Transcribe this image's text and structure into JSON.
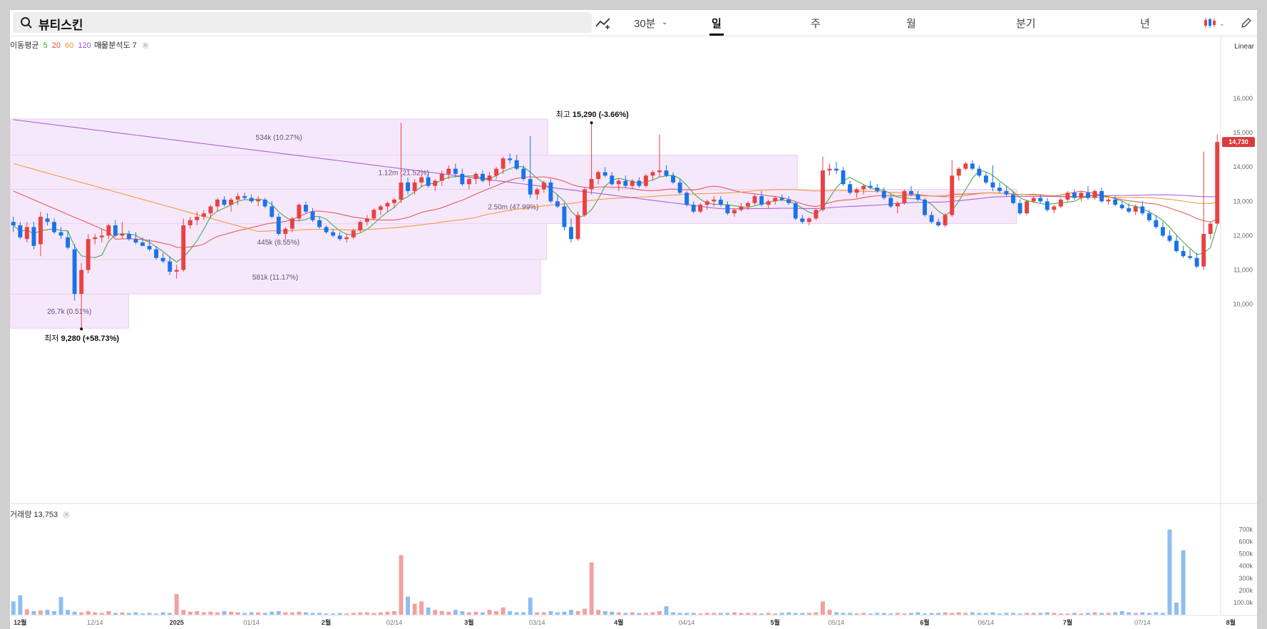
{
  "search": {
    "query": "뷰티스킨"
  },
  "toolbar": {
    "interval": "30분",
    "tabs": [
      "일",
      "주",
      "월",
      "분기",
      "년"
    ],
    "active_tab": "일"
  },
  "legend": {
    "ma_label": "이동평균",
    "ma_periods": [
      "5",
      "20",
      "60",
      "120"
    ],
    "ma_colors": [
      "#3aa33a",
      "#e44c4c",
      "#f0922f",
      "#9b59d0"
    ],
    "vp_label": "매물분석도 7"
  },
  "scale_mode": "Linear",
  "volume_legend": "거래량 13,753",
  "annotations": {
    "high_label": "최고",
    "high_value": "15,290 (-3.66%)",
    "low_label": "최저",
    "low_value": "9,280 (+58.73%)",
    "current_price": "14,730"
  },
  "chart_data": {
    "type": "candlestick",
    "price_axis": {
      "ticks": [
        "16,000",
        "15,000",
        "14,000",
        "13,000",
        "12,000",
        "11,000",
        "10,000"
      ],
      "ylim": [
        9000,
        16600
      ]
    },
    "volume_axis": {
      "ticks": [
        "700k",
        "600k",
        "500k",
        "400k",
        "300k",
        "200k",
        "100.0k"
      ],
      "ylim": [
        0,
        750000
      ]
    },
    "x_labels": [
      "12월",
      "12/14",
      "2025",
      "01/14",
      "2월",
      "02/14",
      "3월",
      "03/14",
      "4월",
      "04/14",
      "5월",
      "05/14",
      "6월",
      "06/14",
      "7월",
      "07/14",
      "8월"
    ],
    "x_label_index": [
      1,
      12,
      24,
      35,
      46,
      56,
      67,
      77,
      89,
      99,
      112,
      121,
      134,
      143,
      155,
      166,
      179
    ],
    "ohlc": [
      [
        12400,
        12550,
        12100,
        12300
      ],
      [
        12300,
        12400,
        11900,
        11950
      ],
      [
        11900,
        12400,
        11800,
        12250
      ],
      [
        12250,
        12400,
        11600,
        11700
      ],
      [
        11750,
        12700,
        11400,
        12550
      ],
      [
        12500,
        12650,
        12300,
        12400
      ],
      [
        12400,
        12500,
        12050,
        12100
      ],
      [
        12100,
        12250,
        11900,
        12000
      ],
      [
        11950,
        12150,
        11600,
        11650
      ],
      [
        11600,
        11750,
        10100,
        10300
      ],
      [
        10300,
        11200,
        9280,
        11000
      ],
      [
        11000,
        12050,
        10900,
        11900
      ],
      [
        11900,
        12050,
        11750,
        11950
      ],
      [
        11950,
        12200,
        11800,
        12000
      ],
      [
        12000,
        12350,
        11900,
        12300
      ],
      [
        12300,
        12450,
        11950,
        12000
      ],
      [
        12000,
        12400,
        11900,
        12050
      ],
      [
        12050,
        12150,
        11850,
        11900
      ],
      [
        11900,
        12100,
        11750,
        11800
      ],
      [
        11800,
        11950,
        11700,
        11700
      ],
      [
        11700,
        11900,
        11550,
        11600
      ],
      [
        11600,
        11700,
        11300,
        11350
      ],
      [
        11350,
        11500,
        11200,
        11250
      ],
      [
        11250,
        11400,
        10850,
        10950
      ],
      [
        10950,
        11150,
        10750,
        11000
      ],
      [
        11000,
        12500,
        10950,
        12300
      ],
      [
        12300,
        12550,
        12200,
        12450
      ],
      [
        12450,
        12700,
        12300,
        12550
      ],
      [
        12550,
        12750,
        12450,
        12650
      ],
      [
        12650,
        12900,
        12500,
        12850
      ],
      [
        12850,
        13100,
        12700,
        13050
      ],
      [
        13050,
        13150,
        12850,
        12900
      ],
      [
        12900,
        13100,
        12700,
        13050
      ],
      [
        13050,
        13250,
        12900,
        13150
      ],
      [
        13150,
        13250,
        13050,
        13100
      ],
      [
        13100,
        13200,
        12950,
        13000
      ],
      [
        13000,
        13150,
        12850,
        13050
      ],
      [
        13050,
        13100,
        12800,
        12850
      ],
      [
        12850,
        13000,
        12500,
        12550
      ],
      [
        12550,
        12650,
        12000,
        12050
      ],
      [
        12050,
        12250,
        11900,
        12200
      ],
      [
        12200,
        12550,
        12100,
        12500
      ],
      [
        12500,
        12950,
        12400,
        12900
      ],
      [
        12900,
        13000,
        12650,
        12700
      ],
      [
        12700,
        12800,
        12400,
        12450
      ],
      [
        12450,
        12550,
        12200,
        12250
      ],
      [
        12250,
        12300,
        12050,
        12100
      ],
      [
        12100,
        12200,
        11950,
        12000
      ],
      [
        12000,
        12100,
        11850,
        11900
      ],
      [
        11900,
        12050,
        11800,
        11950
      ],
      [
        11950,
        12200,
        11900,
        12150
      ],
      [
        12150,
        12450,
        12100,
        12400
      ],
      [
        12400,
        12600,
        12300,
        12500
      ],
      [
        12500,
        12800,
        12450,
        12750
      ],
      [
        12750,
        12900,
        12600,
        12850
      ],
      [
        12850,
        13000,
        12700,
        12950
      ],
      [
        12950,
        13100,
        12800,
        13050
      ],
      [
        13050,
        15290,
        12950,
        13550
      ],
      [
        13550,
        13700,
        13200,
        13300
      ],
      [
        13300,
        13650,
        13200,
        13550
      ],
      [
        13550,
        13800,
        13400,
        13700
      ],
      [
        13700,
        13850,
        13400,
        13450
      ],
      [
        13450,
        13650,
        13300,
        13600
      ],
      [
        13600,
        13900,
        13450,
        13800
      ],
      [
        13800,
        14050,
        13650,
        13950
      ],
      [
        13950,
        14100,
        13700,
        13800
      ],
      [
        13800,
        13950,
        13450,
        13500
      ],
      [
        13500,
        13700,
        13350,
        13650
      ],
      [
        13650,
        13850,
        13500,
        13800
      ],
      [
        13800,
        13900,
        13550,
        13600
      ],
      [
        13600,
        13850,
        13450,
        13750
      ],
      [
        13750,
        14000,
        13650,
        13950
      ],
      [
        13950,
        14300,
        13800,
        14250
      ],
      [
        14250,
        14400,
        14100,
        14200
      ],
      [
        14200,
        14350,
        13900,
        13950
      ],
      [
        13950,
        14050,
        13600,
        13650
      ],
      [
        13650,
        14900,
        13100,
        13200
      ],
      [
        13200,
        13400,
        13050,
        13350
      ],
      [
        13350,
        13600,
        13250,
        13550
      ],
      [
        13550,
        13650,
        12950,
        13000
      ],
      [
        13000,
        13200,
        12800,
        12850
      ],
      [
        12850,
        12950,
        12150,
        12250
      ],
      [
        12250,
        12500,
        11800,
        11900
      ],
      [
        11900,
        12700,
        11850,
        12600
      ],
      [
        12600,
        13400,
        12550,
        13350
      ],
      [
        13350,
        15290,
        13200,
        13650
      ],
      [
        13650,
        13900,
        13500,
        13850
      ],
      [
        13850,
        14000,
        13700,
        13750
      ],
      [
        13750,
        13850,
        13450,
        13500
      ],
      [
        13500,
        13650,
        13300,
        13600
      ],
      [
        13600,
        13750,
        13400,
        13450
      ],
      [
        13450,
        13650,
        13350,
        13600
      ],
      [
        13600,
        13700,
        13400,
        13450
      ],
      [
        13450,
        13800,
        13400,
        13750
      ],
      [
        13750,
        13900,
        13600,
        13850
      ],
      [
        13850,
        14950,
        13700,
        13900
      ],
      [
        13900,
        14050,
        13700,
        13750
      ],
      [
        13750,
        13850,
        13500,
        13550
      ],
      [
        13550,
        13650,
        13200,
        13250
      ],
      [
        13250,
        13300,
        12850,
        12900
      ],
      [
        12900,
        13000,
        12650,
        12700
      ],
      [
        12700,
        12950,
        12650,
        12900
      ],
      [
        12900,
        13050,
        12750,
        13000
      ],
      [
        13000,
        13150,
        12850,
        13050
      ],
      [
        13050,
        13150,
        12850,
        12900
      ],
      [
        12900,
        13000,
        12600,
        12650
      ],
      [
        12650,
        12800,
        12550,
        12750
      ],
      [
        12750,
        12950,
        12700,
        12850
      ],
      [
        12850,
        13000,
        12750,
        12950
      ],
      [
        12950,
        13200,
        12900,
        13150
      ],
      [
        13150,
        13300,
        12850,
        12900
      ],
      [
        12900,
        13050,
        12800,
        13000
      ],
      [
        13000,
        13150,
        12900,
        13100
      ],
      [
        13100,
        13200,
        13000,
        13050
      ],
      [
        13050,
        13150,
        12900,
        12950
      ],
      [
        12950,
        13000,
        12450,
        12500
      ],
      [
        12500,
        12600,
        12350,
        12400
      ],
      [
        12400,
        12550,
        12300,
        12500
      ],
      [
        12500,
        12800,
        12450,
        12750
      ],
      [
        12750,
        14300,
        12700,
        13900
      ],
      [
        13900,
        14100,
        13750,
        13950
      ],
      [
        13950,
        14150,
        13800,
        13900
      ],
      [
        13900,
        14000,
        13450,
        13500
      ],
      [
        13500,
        13600,
        13200,
        13250
      ],
      [
        13250,
        13400,
        13100,
        13350
      ],
      [
        13350,
        13500,
        13200,
        13450
      ],
      [
        13450,
        13600,
        13350,
        13400
      ],
      [
        13400,
        13500,
        13250,
        13300
      ],
      [
        13300,
        13400,
        13050,
        13100
      ],
      [
        13100,
        13200,
        12800,
        12850
      ],
      [
        12850,
        13000,
        12650,
        12950
      ],
      [
        12950,
        13350,
        12900,
        13300
      ],
      [
        13300,
        13450,
        13150,
        13200
      ],
      [
        13200,
        13300,
        13000,
        13050
      ],
      [
        13050,
        13100,
        12550,
        12600
      ],
      [
        12600,
        12700,
        12350,
        12400
      ],
      [
        12400,
        12500,
        12250,
        12300
      ],
      [
        12300,
        12650,
        12250,
        12600
      ],
      [
        12600,
        14200,
        12550,
        13750
      ],
      [
        13750,
        14000,
        13600,
        13950
      ],
      [
        13950,
        14150,
        13900,
        14100
      ],
      [
        14100,
        14200,
        13900,
        13950
      ],
      [
        13950,
        14050,
        13700,
        13750
      ],
      [
        13750,
        13850,
        13500,
        13550
      ],
      [
        13550,
        14050,
        13300,
        13400
      ],
      [
        13400,
        13550,
        13250,
        13300
      ],
      [
        13300,
        13450,
        13150,
        13200
      ],
      [
        13200,
        13300,
        12900,
        12950
      ],
      [
        12950,
        13050,
        12600,
        12650
      ],
      [
        12650,
        13050,
        12600,
        13000
      ],
      [
        13000,
        13150,
        12950,
        13100
      ],
      [
        13100,
        13200,
        12950,
        13000
      ],
      [
        13000,
        13100,
        12700,
        12750
      ],
      [
        12750,
        12900,
        12650,
        12850
      ],
      [
        12850,
        13100,
        12800,
        13050
      ],
      [
        13050,
        13300,
        13000,
        13250
      ],
      [
        13250,
        13350,
        13050,
        13100
      ],
      [
        13100,
        13300,
        13000,
        13250
      ],
      [
        13250,
        13450,
        13050,
        13100
      ],
      [
        13100,
        13350,
        13050,
        13300
      ],
      [
        13300,
        13400,
        12950,
        13000
      ],
      [
        13000,
        13100,
        12900,
        13050
      ],
      [
        13050,
        13150,
        12850,
        12900
      ],
      [
        12900,
        13000,
        12750,
        12800
      ],
      [
        12800,
        12950,
        12650,
        12700
      ],
      [
        12700,
        12900,
        12600,
        12850
      ],
      [
        12850,
        13000,
        12600,
        12650
      ],
      [
        12650,
        12750,
        12400,
        12450
      ],
      [
        12450,
        12600,
        12200,
        12250
      ],
      [
        12250,
        12400,
        11950,
        12000
      ],
      [
        12000,
        12150,
        11800,
        11850
      ],
      [
        11850,
        12000,
        11500,
        11550
      ],
      [
        11550,
        11700,
        11350,
        11400
      ],
      [
        11400,
        11600,
        11300,
        11350
      ],
      [
        11350,
        11500,
        11050,
        11100
      ],
      [
        11100,
        14450,
        11000,
        12050
      ],
      [
        12050,
        12400,
        11900,
        12350
      ],
      [
        12350,
        14950,
        12300,
        14730
      ]
    ],
    "volume": [
      110000,
      160000,
      45000,
      30000,
      35000,
      40000,
      30000,
      145000,
      40000,
      25000,
      20000,
      30000,
      20000,
      15000,
      30000,
      15000,
      20000,
      15000,
      20000,
      10000,
      15000,
      10000,
      20000,
      15000,
      170000,
      40000,
      25000,
      30000,
      20000,
      25000,
      20000,
      30000,
      25000,
      20000,
      15000,
      20000,
      20000,
      15000,
      25000,
      30000,
      20000,
      20000,
      25000,
      20000,
      15000,
      15000,
      10000,
      10000,
      15000,
      10000,
      15000,
      20000,
      20000,
      15000,
      20000,
      25000,
      30000,
      490000,
      150000,
      90000,
      110000,
      60000,
      40000,
      30000,
      25000,
      40000,
      30000,
      20000,
      25000,
      20000,
      40000,
      30000,
      60000,
      30000,
      20000,
      20000,
      140000,
      20000,
      20000,
      30000,
      20000,
      25000,
      40000,
      30000,
      50000,
      430000,
      40000,
      30000,
      25000,
      20000,
      15000,
      20000,
      15000,
      15000,
      20000,
      30000,
      70000,
      20000,
      15000,
      15000,
      15000,
      10000,
      15000,
      15000,
      15000,
      15000,
      20000,
      15000,
      15000,
      15000,
      10000,
      15000,
      10000,
      15000,
      20000,
      15000,
      15000,
      15000,
      20000,
      110000,
      40000,
      20000,
      15000,
      15000,
      10000,
      15000,
      10000,
      15000,
      15000,
      10000,
      15000,
      10000,
      15000,
      20000,
      10000,
      15000,
      15000,
      20000,
      15000,
      20000,
      15000,
      20000,
      15000,
      15000,
      20000,
      10000,
      15000,
      15000,
      10000,
      15000,
      15000,
      15000,
      20000,
      15000,
      10000,
      10000,
      15000,
      10000,
      15000,
      20000,
      15000,
      15000,
      20000,
      30000,
      20000,
      15000,
      20000,
      15000,
      20000,
      15000,
      700000,
      100000,
      530000
    ],
    "ma_series": [
      {
        "name": "5",
        "color": "#3aa33a",
        "window": 5
      },
      {
        "name": "20",
        "color": "#e44c4c",
        "window": 20
      },
      {
        "name": "60",
        "color": "#f0922f",
        "window": 60
      },
      {
        "name": "120",
        "color": "#9b59d0",
        "window": 120
      }
    ],
    "volume_profile": [
      {
        "price_low": 9300,
        "price_high": 10300,
        "volume_label": "26.7k (0.51%)"
      },
      {
        "price_low": 10300,
        "price_high": 11300,
        "volume_label": "581k (11.17%)"
      },
      {
        "price_low": 11300,
        "price_high": 12350,
        "volume_label": "445k (8.55%)"
      },
      {
        "price_low": 12350,
        "price_high": 13350,
        "volume_label": "2.50m (47.99%)"
      },
      {
        "price_low": 13350,
        "price_high": 14350,
        "volume_label": "1.12m (21.52%)"
      },
      {
        "price_low": 14350,
        "price_high": 15400,
        "volume_label": "534k (10.27%)"
      }
    ],
    "vp_extent": [
      0.098,
      0.438,
      0.443,
      0.831,
      0.65,
      0.444
    ]
  },
  "colors": {
    "up": "#e84242",
    "down": "#1a73e8",
    "vol_up": "#f2a0a0",
    "vol_down": "#8ebdf0",
    "vp_fill": "#f6e8fb",
    "vp_stroke": "#ead0f3"
  }
}
